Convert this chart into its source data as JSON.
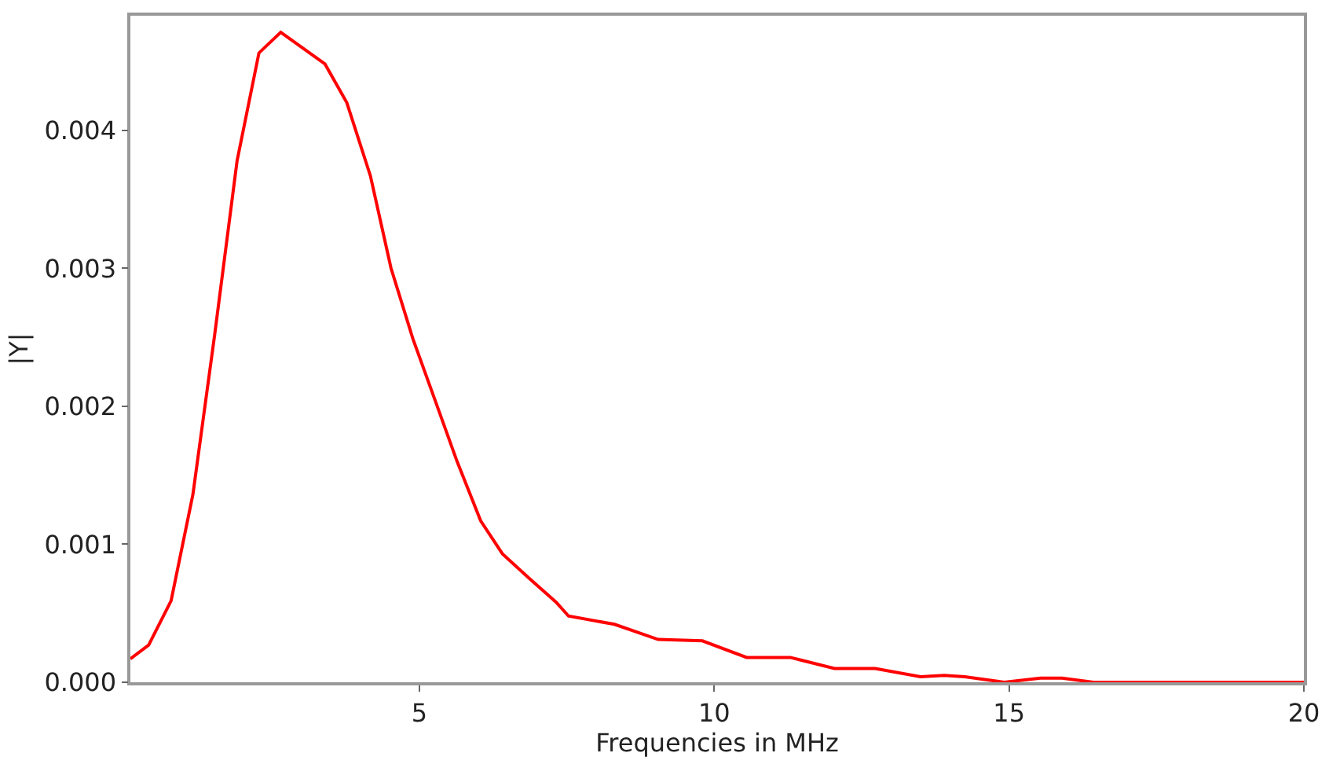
{
  "chart_data": {
    "type": "line",
    "xlabel": "Frequencies in MHz",
    "ylabel": "|Y|",
    "x": [
      0.1,
      0.41,
      0.79,
      1.16,
      1.53,
      1.91,
      2.28,
      2.65,
      3.4,
      3.77,
      4.17,
      4.52,
      4.89,
      5.27,
      5.64,
      6.04,
      6.41,
      6.87,
      7.32,
      7.53,
      8.31,
      9.05,
      9.8,
      10.55,
      11.29,
      12.04,
      12.73,
      13.5,
      13.9,
      14.25,
      14.92,
      15.53,
      15.9,
      16.43,
      16.97,
      17.85,
      18.6,
      19.45,
      20
    ],
    "series": [
      {
        "color": "#ff0000",
        "values": [
          0.00017,
          0.00027,
          0.00059,
          0.00136,
          0.00252,
          0.00378,
          0.00456,
          0.00471,
          0.00448,
          0.0042,
          0.00367,
          0.003,
          0.00249,
          0.00204,
          0.0016,
          0.00117,
          0.00093,
          0.00075,
          0.00058,
          0.00048,
          0.00042,
          0.00031,
          0.0003,
          0.00018,
          0.00018,
          0.0001,
          0.0001,
          4e-05,
          5e-05,
          4e-05,
          0.0,
          3e-05,
          3e-05,
          0.0,
          0.0,
          0.0,
          0.0,
          0.0,
          0.0
        ]
      }
    ],
    "xlim": [
      0.1,
      20
    ],
    "xticks": [
      5,
      10,
      15,
      20
    ],
    "ylim": [
      0,
      0.00483
    ],
    "yticks": [
      {
        "value": 0,
        "label": "0.000"
      },
      {
        "value": 0.001,
        "label": "0.001"
      },
      {
        "value": 0.002,
        "label": "0.002"
      },
      {
        "value": 0.003,
        "label": "0.003"
      },
      {
        "value": 0.004,
        "label": "0.004"
      }
    ],
    "marker": "none",
    "line_style": "solid"
  }
}
